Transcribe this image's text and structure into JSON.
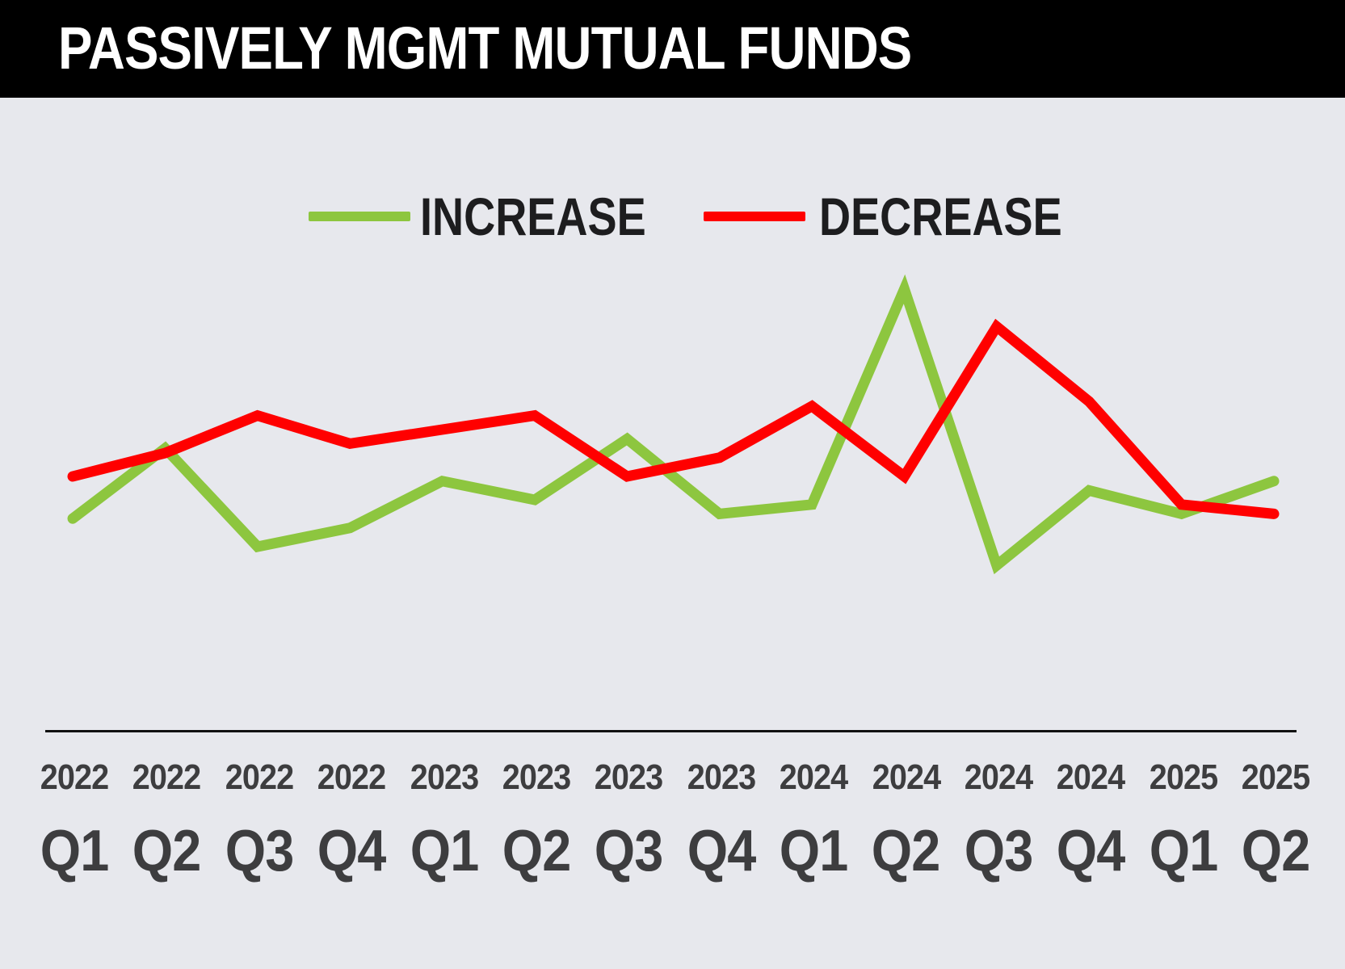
{
  "header": {
    "title": "PASSIVELY MGMT MUTUAL FUNDS"
  },
  "legend": {
    "increase_label": "INCREASE",
    "decrease_label": "DECREASE"
  },
  "colors": {
    "increase": "#8dc63f",
    "decrease": "#ff0000",
    "background": "#e7e8ed",
    "header": "#000000"
  },
  "chart_data": {
    "type": "line",
    "title": "PASSIVELY MGMT MUTUAL FUNDS",
    "xlabel": "",
    "ylabel": "",
    "grid": false,
    "legend_position": "top-center",
    "categories": [
      {
        "year": "2022",
        "quarter": "Q1"
      },
      {
        "year": "2022",
        "quarter": "Q2"
      },
      {
        "year": "2022",
        "quarter": "Q3"
      },
      {
        "year": "2022",
        "quarter": "Q4"
      },
      {
        "year": "2023",
        "quarter": "Q1"
      },
      {
        "year": "2023",
        "quarter": "Q2"
      },
      {
        "year": "2023",
        "quarter": "Q3"
      },
      {
        "year": "2023",
        "quarter": "Q4"
      },
      {
        "year": "2024",
        "quarter": "Q1"
      },
      {
        "year": "2024",
        "quarter": "Q2"
      },
      {
        "year": "2024",
        "quarter": "Q3"
      },
      {
        "year": "2024",
        "quarter": "Q4"
      },
      {
        "year": "2025",
        "quarter": "Q1"
      },
      {
        "year": "2025",
        "quarter": "Q2"
      }
    ],
    "ylim": [
      0,
      100
    ],
    "series": [
      {
        "name": "INCREASE",
        "color": "#8dc63f",
        "values": [
          41,
          56,
          35,
          39,
          49,
          45,
          58,
          42,
          44,
          90,
          31,
          47,
          42,
          49
        ]
      },
      {
        "name": "DECREASE",
        "color": "#ff0000",
        "values": [
          50,
          55,
          63,
          57,
          60,
          63,
          50,
          54,
          65,
          50,
          82,
          66,
          44,
          42
        ]
      }
    ]
  }
}
